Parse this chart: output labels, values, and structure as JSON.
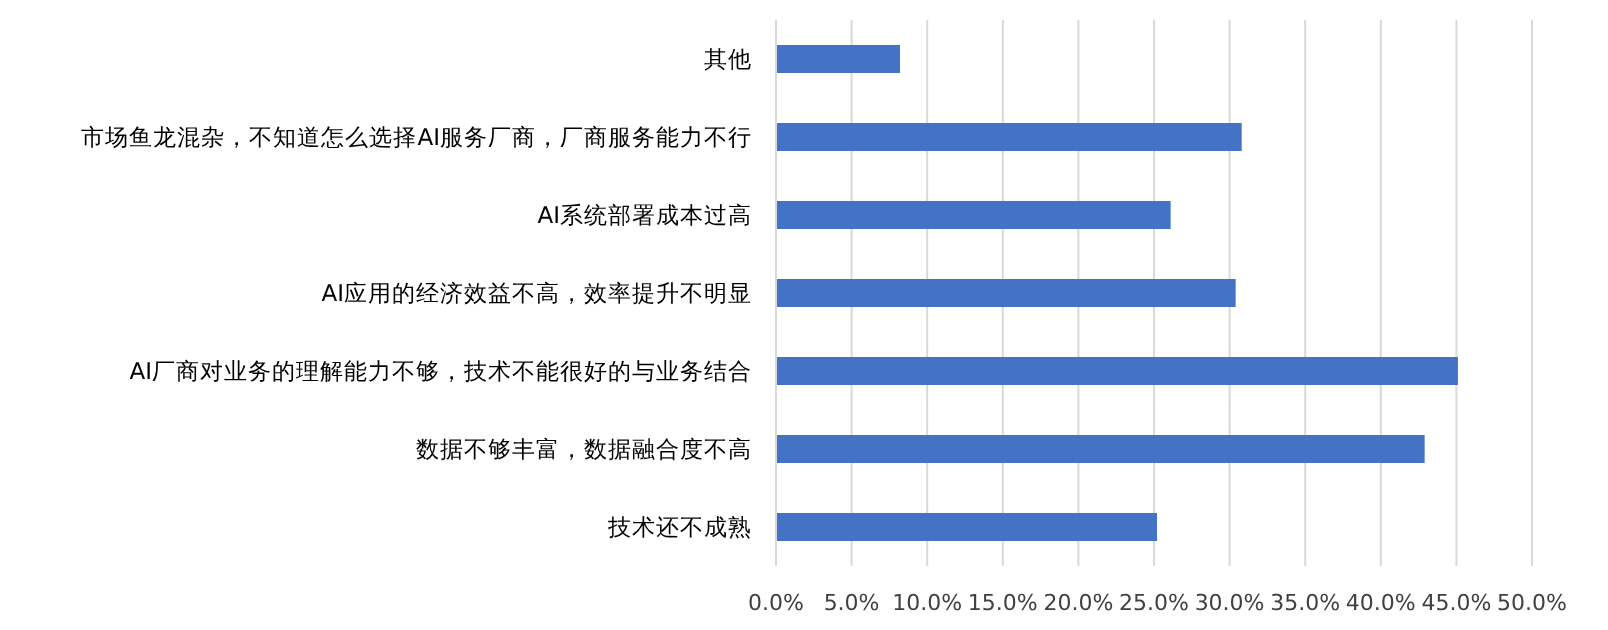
{
  "chart_data": {
    "type": "bar",
    "orientation": "horizontal",
    "categories": [
      "其他",
      "市场鱼龙混杂，不知道怎么选择AI服务厂商，厂商服务能力不行",
      "AI系统部署成本过高",
      "AI应用的经济效益不高，效率提升不明显",
      "AI厂商对业务的理解能力不够，技术不能很好的与业务结合",
      "数据不够丰富，数据融合度不高",
      "技术还不成熟"
    ],
    "values": [
      8.2,
      30.8,
      26.1,
      30.4,
      45.1,
      42.9,
      25.2
    ],
    "color": "#4472c4",
    "xlim": [
      0,
      50
    ],
    "xticks": [
      {
        "value": 0,
        "label": "0.0%"
      },
      {
        "value": 5,
        "label": "5.0%"
      },
      {
        "value": 10,
        "label": "10.0%"
      },
      {
        "value": 15,
        "label": "15.0%"
      },
      {
        "value": 20,
        "label": "20.0%"
      },
      {
        "value": 25,
        "label": "25.0%"
      },
      {
        "value": 30,
        "label": "30.0%"
      },
      {
        "value": 35,
        "label": "35.0%"
      },
      {
        "value": 40,
        "label": "40.0%"
      },
      {
        "value": 45,
        "label": "45.0%"
      },
      {
        "value": 50,
        "label": "50.0%"
      }
    ],
    "grid": "x"
  }
}
